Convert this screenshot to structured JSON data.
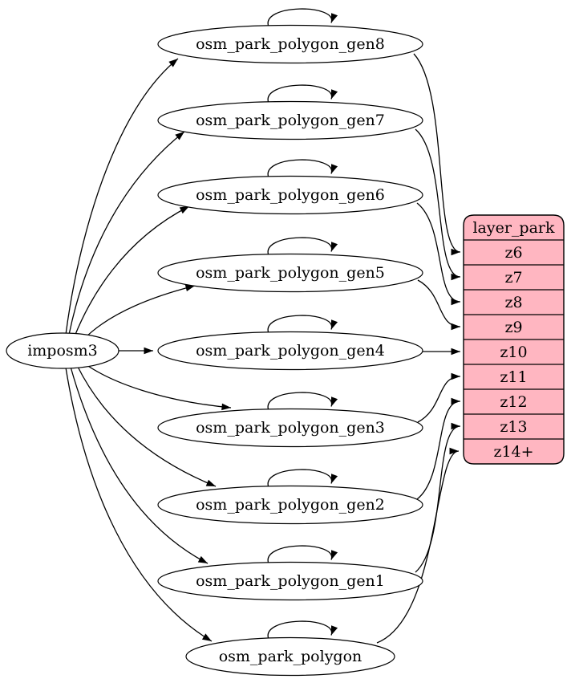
{
  "diagram": {
    "type": "etl-graph",
    "background": "#ffffff",
    "edge_color": "#000000",
    "node_style": {
      "fill": "#ffffff",
      "stroke": "#000000"
    },
    "source": {
      "label": "imposm3"
    },
    "tables": [
      {
        "label": "osm_park_polygon_gen8",
        "row": "z6",
        "self_loop": true
      },
      {
        "label": "osm_park_polygon_gen7",
        "row": "z7",
        "self_loop": true
      },
      {
        "label": "osm_park_polygon_gen6",
        "row": "z8",
        "self_loop": true
      },
      {
        "label": "osm_park_polygon_gen5",
        "row": "z9",
        "self_loop": true
      },
      {
        "label": "osm_park_polygon_gen4",
        "row": "z10",
        "self_loop": true
      },
      {
        "label": "osm_park_polygon_gen3",
        "row": "z11",
        "self_loop": true
      },
      {
        "label": "osm_park_polygon_gen2",
        "row": "z12",
        "self_loop": true
      },
      {
        "label": "osm_park_polygon_gen1",
        "row": "z13",
        "self_loop": true
      },
      {
        "label": "osm_park_polygon",
        "row": "z14+",
        "self_loop": true
      }
    ],
    "layer_table": {
      "header": "layer_park",
      "rows": [
        "z6",
        "z7",
        "z8",
        "z9",
        "z10",
        "z11",
        "z12",
        "z13",
        "z14+"
      ],
      "fill": "#ffb6c1",
      "stroke": "#000000"
    }
  }
}
